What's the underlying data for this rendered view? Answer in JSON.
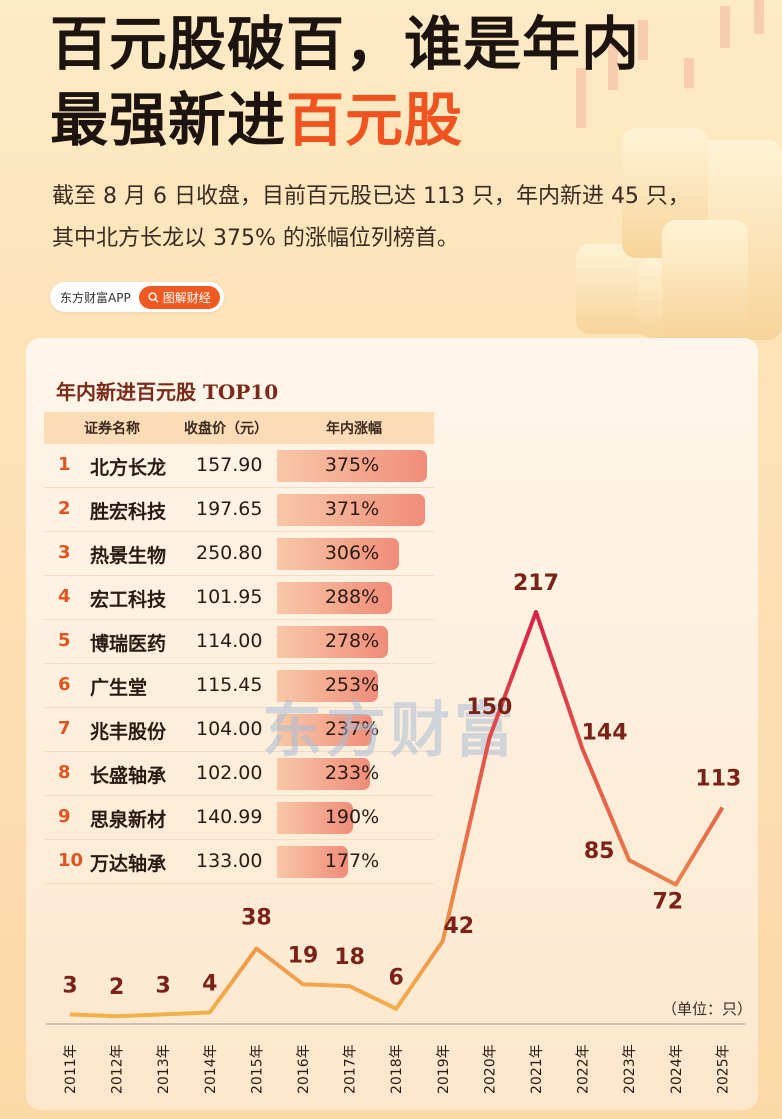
{
  "header": {
    "title_line1": "百元股破百，谁是年内",
    "title_line2_a": "最强新进",
    "title_line2_b": "百元股",
    "subtitle_line1": "截至 8 月 6 日收盘，目前百元股已达 113 只，年内新进 45 只，",
    "subtitle_line2": "其中北方长龙以 375% 的涨幅位列榜首。",
    "brand": "东方财富APP",
    "brand_tag": "图解财经",
    "brand_tag_icon": "search-icon"
  },
  "colors": {
    "accent": "#ef5320",
    "line_start": "#f2b24a",
    "line_end": "#d8204a",
    "value_label": "#7a2218"
  },
  "table": {
    "title": "年内新进百元股 TOP10",
    "columns": [
      "证券名称",
      "收盘价（元）",
      "年内涨幅"
    ],
    "rows": [
      {
        "rank": "1",
        "name": "北方长龙",
        "price": "157.90",
        "pct": "375%",
        "value": 375
      },
      {
        "rank": "2",
        "name": "胜宏科技",
        "price": "197.65",
        "pct": "371%",
        "value": 371
      },
      {
        "rank": "3",
        "name": "热景生物",
        "price": "250.80",
        "pct": "306%",
        "value": 306
      },
      {
        "rank": "4",
        "name": "宏工科技",
        "price": "101.95",
        "pct": "288%",
        "value": 288
      },
      {
        "rank": "5",
        "name": "博瑞医药",
        "price": "114.00",
        "pct": "278%",
        "value": 278
      },
      {
        "rank": "6",
        "name": "广生堂",
        "price": "115.45",
        "pct": "253%",
        "value": 253
      },
      {
        "rank": "7",
        "name": "兆丰股份",
        "price": "104.00",
        "pct": "237%",
        "value": 237
      },
      {
        "rank": "8",
        "name": "长盛轴承",
        "price": "102.00",
        "pct": "233%",
        "value": 233
      },
      {
        "rank": "9",
        "name": "思泉新材",
        "price": "140.99",
        "pct": "190%",
        "value": 190
      },
      {
        "rank": "10",
        "name": "万达轴承",
        "price": "133.00",
        "pct": "177%",
        "value": 177
      }
    ]
  },
  "watermark": "东方财富",
  "chart_data": {
    "type": "line",
    "x": [
      "2011年",
      "2012年",
      "2013年",
      "2014年",
      "2015年",
      "2016年",
      "2017年",
      "2018年",
      "2019年",
      "2020年",
      "2021年",
      "2022年",
      "2023年",
      "2024年",
      "2025年"
    ],
    "y": [
      3,
      2,
      3,
      4,
      38,
      19,
      18,
      6,
      42,
      150,
      217,
      144,
      85,
      72,
      113
    ],
    "unit_label": "（单位：只）",
    "grid": false,
    "ylim": [
      0,
      217
    ]
  }
}
